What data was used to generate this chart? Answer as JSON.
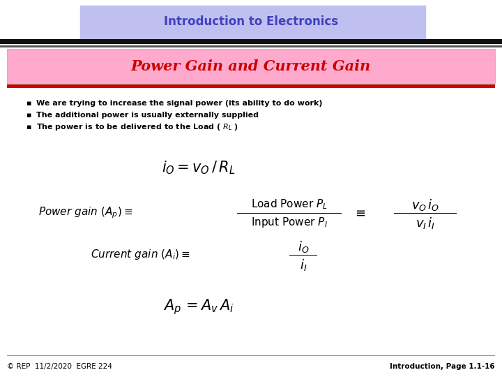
{
  "title_box_color": "#c0c0f0",
  "title_text": "Introduction to Electronics",
  "title_text_color": "#4040c0",
  "subtitle_bg_color": "#ffaacc",
  "subtitle_text": "Power Gain and Current Gain",
  "subtitle_text_color": "#cc0000",
  "bg_color": "#ffffff",
  "black_bar_color": "#111111",
  "red_bar_color": "#cc0000",
  "bullet1": "We are trying to increase the signal power (its ability to do work)",
  "bullet2": "The additional power is usually externally supplied",
  "bullet3": "The power is to be delivered to the Load ( $R_L$ )",
  "footer_left": "© REP  11/2/2020  EGRE 224",
  "footer_right": "Introduction, Page 1.1-16"
}
